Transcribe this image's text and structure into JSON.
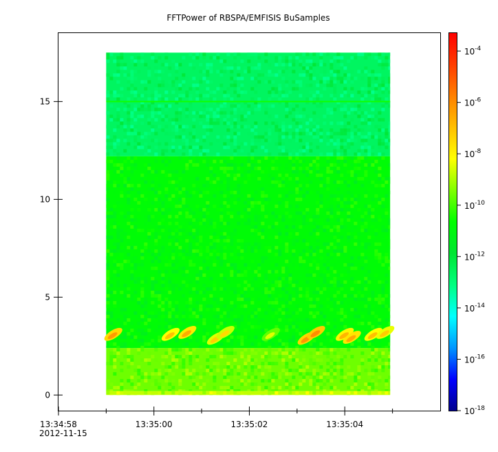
{
  "chart_data": {
    "type": "heatmap",
    "title": "FFTPower of RBSPA/EMFISIS  BuSamples",
    "xlabel": "",
    "ylabel": "",
    "x_ticks": [
      {
        "label": "13:34:58",
        "sublabel": "2012-11-15",
        "t": 0
      },
      {
        "label": "13:35:00",
        "t": 2
      },
      {
        "label": "13:35:02",
        "t": 4
      },
      {
        "label": "13:35:04",
        "t": 6
      }
    ],
    "x_minor_ticks": [
      1,
      3,
      5,
      7
    ],
    "xlim": [
      0,
      8
    ],
    "ylim": [
      -0.8,
      18.5
    ],
    "y_ticks": [
      0,
      5,
      10,
      15
    ],
    "data_extent": {
      "t_start": 1.0,
      "t_end": 6.95,
      "y_min": 0,
      "y_max": 17.5
    },
    "bands": [
      {
        "y_from": 12.2,
        "y_to": 17.5,
        "level": -12.6
      },
      {
        "y_from": 2.4,
        "y_to": 12.2,
        "level": -10.8
      },
      {
        "y_from": 0.2,
        "y_to": 2.4,
        "level": -9.6
      },
      {
        "y_from": 0.0,
        "y_to": 0.2,
        "level": -8.8
      }
    ],
    "line_feature": {
      "y": 15.0,
      "level": -10.5
    },
    "bursts": [
      {
        "t": 1.15,
        "y": 3.1,
        "level": -6.3
      },
      {
        "t": 2.35,
        "y": 3.1,
        "level": -7.0
      },
      {
        "t": 2.7,
        "y": 3.2,
        "level": -6.6
      },
      {
        "t": 3.3,
        "y": 2.9,
        "level": -7.3
      },
      {
        "t": 3.5,
        "y": 3.2,
        "level": -7.5
      },
      {
        "t": 4.45,
        "y": 3.1,
        "level": -8.5
      },
      {
        "t": 5.2,
        "y": 2.9,
        "level": -6.2
      },
      {
        "t": 5.4,
        "y": 3.2,
        "level": -6.0
      },
      {
        "t": 6.0,
        "y": 3.1,
        "level": -6.8
      },
      {
        "t": 6.15,
        "y": 2.95,
        "level": -6.5
      },
      {
        "t": 6.6,
        "y": 3.1,
        "level": -7.0
      },
      {
        "t": 6.85,
        "y": 3.2,
        "level": -7.2
      }
    ],
    "colorbar": {
      "scale": "log",
      "range": [
        -18,
        -3.3
      ],
      "tick_exponents": [
        -4,
        -6,
        -8,
        -10,
        -12,
        -14,
        -16,
        -18
      ],
      "tick_labels": [
        "10",
        "10",
        "10",
        "10",
        "10",
        "10",
        "10",
        "10"
      ],
      "tick_superscripts": [
        "-4",
        "-6",
        "-8",
        "-10",
        "-12",
        "-14",
        "-16",
        "-18"
      ],
      "colormap": [
        "#00008c",
        "#0000ff",
        "#0096ff",
        "#00ffff",
        "#00ff80",
        "#00e632",
        "#00ff00",
        "#80ff00",
        "#ffff00",
        "#ffbf00",
        "#ff8000",
        "#ff3c00",
        "#ff0000"
      ]
    },
    "grid": false
  }
}
